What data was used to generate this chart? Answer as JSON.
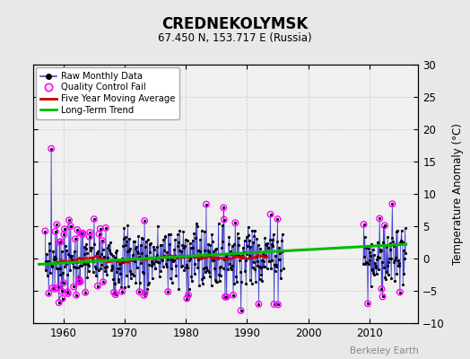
{
  "title": "CREDNEKOLYMSK",
  "subtitle": "67.450 N, 153.717 E (Russia)",
  "ylabel": "Temperature Anomaly (°C)",
  "attribution": "Berkeley Earth",
  "xlim": [
    1955,
    2018
  ],
  "ylim": [
    -10,
    30
  ],
  "yticks": [
    -10,
    -5,
    0,
    5,
    10,
    15,
    20,
    25,
    30
  ],
  "xticks": [
    1960,
    1970,
    1980,
    1990,
    2000,
    2010
  ],
  "bg_color": "#e8e8e8",
  "plot_bg_color": "#f0f0f0",
  "raw_line_color": "#4444cc",
  "raw_marker_color": "#000000",
  "qc_fail_color": "#ff00ff",
  "moving_avg_color": "#cc0000",
  "trend_color": "#00bb00",
  "trend_x": [
    1956,
    2016
  ],
  "trend_y": [
    -0.9,
    2.2
  ],
  "seed": 42
}
